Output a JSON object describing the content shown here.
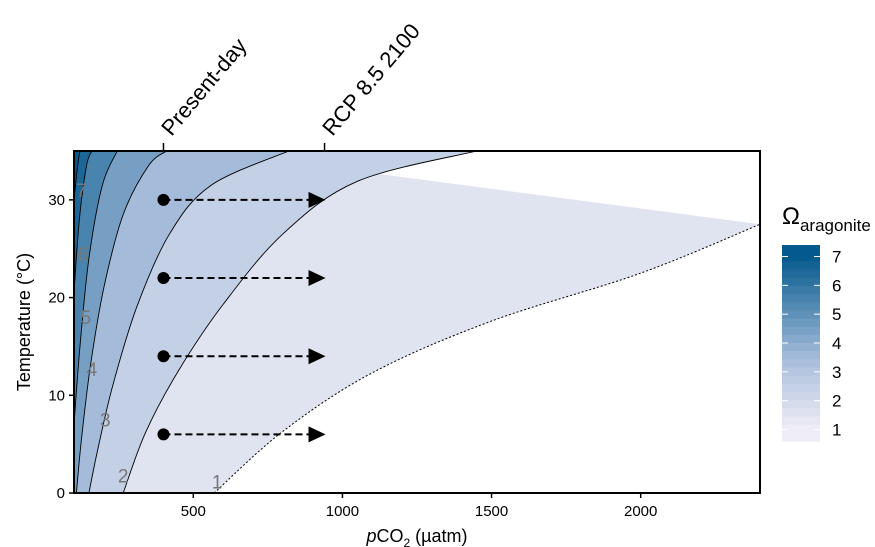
{
  "chart_data": {
    "type": "contour",
    "xlabel_italic": "p",
    "xlabel_main": "CO",
    "xlabel_sub": "2",
    "xlabel_unit": " (µatm)",
    "ylabel": "Temperature (°C)",
    "xlim": [
      100,
      2400
    ],
    "ylim": [
      0,
      35
    ],
    "x_ticks": [
      500,
      1000,
      1500,
      2000
    ],
    "y_ticks": [
      0,
      10,
      20,
      30
    ],
    "top_markers": [
      {
        "label": "Present-day",
        "x": 400
      },
      {
        "label": "RCP 8.5 2100",
        "x": 940
      }
    ],
    "contour_levels": [
      1,
      2,
      3,
      4,
      5,
      6,
      7
    ],
    "contours": [
      {
        "level": 1,
        "label": "1",
        "style": "dotted",
        "points": [
          [
            570,
            0
          ],
          [
            800,
            6.3
          ],
          [
            1100,
            12.3
          ],
          [
            1500,
            17.6
          ],
          [
            2000,
            22.5
          ],
          [
            2400,
            27.5
          ]
        ]
      },
      {
        "level": 2,
        "label": "2",
        "style": "solid",
        "points": [
          [
            265,
            0
          ],
          [
            340,
            6.2
          ],
          [
            450,
            12.5
          ],
          [
            600,
            19.3
          ],
          [
            800,
            26.5
          ],
          [
            1050,
            31.9
          ],
          [
            1450,
            35
          ]
        ]
      },
      {
        "level": 3,
        "label": "3",
        "style": "solid",
        "points": [
          [
            150,
            0
          ],
          [
            180,
            4.5
          ],
          [
            230,
            11
          ],
          [
            310,
            19
          ],
          [
            420,
            26.5
          ],
          [
            560,
            31.5
          ],
          [
            820,
            35
          ]
        ]
      },
      {
        "level": 4,
        "label": "4",
        "style": "solid",
        "points": [
          [
            108,
            0
          ],
          [
            125,
            5.5
          ],
          [
            155,
            13
          ],
          [
            200,
            21
          ],
          [
            265,
            28.5
          ],
          [
            350,
            33.5
          ],
          [
            410,
            35
          ]
        ]
      },
      {
        "level": 5,
        "label": "5",
        "style": "solid",
        "points": [
          [
            100,
            7
          ],
          [
            120,
            15
          ],
          [
            150,
            24
          ],
          [
            195,
            31.5
          ],
          [
            245,
            35
          ]
        ]
      },
      {
        "level": 6,
        "label": "6",
        "style": "solid",
        "points": [
          [
            100,
            20.5
          ],
          [
            118,
            28
          ],
          [
            142,
            33.5
          ],
          [
            160,
            35
          ]
        ]
      },
      {
        "level": 7,
        "label": "7",
        "style": "solid",
        "points": [
          [
            100,
            30
          ],
          [
            112,
            33.5
          ],
          [
            120,
            35
          ]
        ]
      }
    ],
    "contour_labels": [
      {
        "text": "1",
        "x": 580,
        "y": 1.2
      },
      {
        "text": "2",
        "x": 265,
        "y": 1.8
      },
      {
        "text": "3",
        "x": 205,
        "y": 7.5
      },
      {
        "text": "4",
        "x": 160,
        "y": 12.7
      },
      {
        "text": "5",
        "x": 140,
        "y": 18
      },
      {
        "text": "6",
        "x": 130,
        "y": 24.5
      },
      {
        "text": "7",
        "x": 125,
        "y": 31
      }
    ],
    "scenarios": [
      {
        "temperature": 30,
        "from": 400,
        "to": 940
      },
      {
        "temperature": 22,
        "from": 400,
        "to": 940
      },
      {
        "temperature": 14,
        "from": 400,
        "to": 940
      },
      {
        "temperature": 6,
        "from": 400,
        "to": 940
      }
    ],
    "legend": {
      "title_symbol": "Ω",
      "title_sub": "aragonite",
      "labels": [
        "7",
        "6",
        "5",
        "4",
        "3",
        "2",
        "1"
      ],
      "range": [
        0.6,
        7.4
      ]
    },
    "colors": {
      "low": "#efedf5",
      "mid": "#a9bedc",
      "high": "#045a8d",
      "empty": "#ffffff",
      "line": "#000000"
    }
  }
}
